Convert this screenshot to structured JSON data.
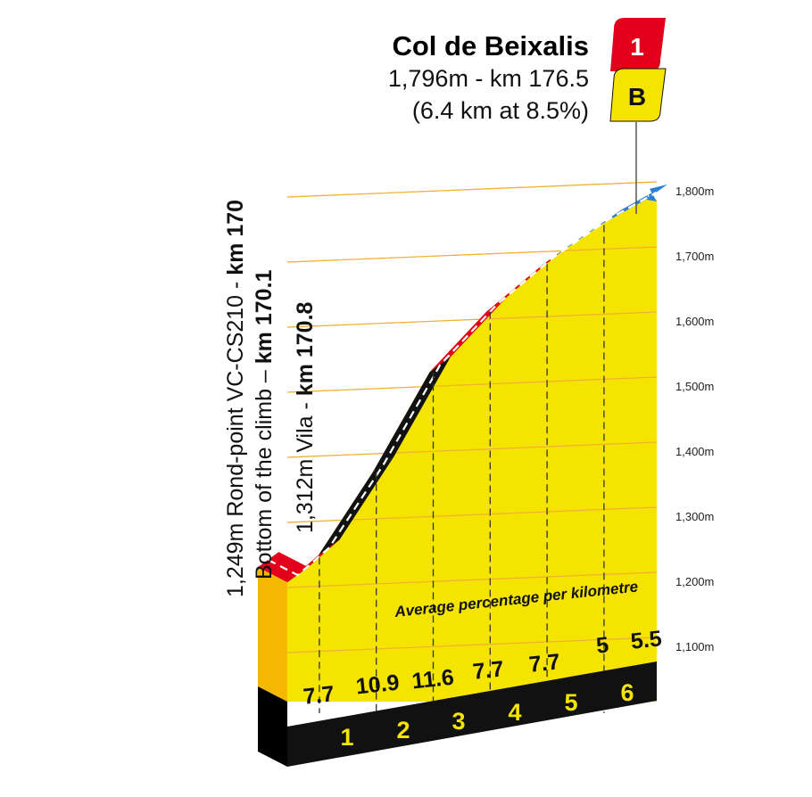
{
  "summit": {
    "name": "Col de Beixalis",
    "altitude_km": "1,796m - km 176.5",
    "climb_stats": "(6.4 km at 8.5%)",
    "category_badge": "1",
    "bonus_badge": "B"
  },
  "waypoints": [
    {
      "text": "1,249m Rond-point VC-CS210 - ",
      "km_text": "km 170"
    },
    {
      "text": "Bottom of the climb – ",
      "km_text": "km 170.1"
    },
    {
      "text": "1,312m Vila - ",
      "km_text": "km 170.8"
    }
  ],
  "annotation": "Average percentage per kilometre",
  "colors": {
    "profile_face": "#f5e400",
    "profile_side": "#f5b800",
    "base": "#111111",
    "category_badge": "#e2001a",
    "bonus_badge": "#f5e400",
    "gradient_bands": {
      "under6": "#2a7fd4",
      "6to9": "#e2001a",
      "9to12": "#111111"
    }
  },
  "chart_data": {
    "type": "area",
    "title": "Col de Beixalis",
    "y_ticks": [
      "1,100m",
      "1,200m",
      "1,300m",
      "1,400m",
      "1,500m",
      "1,600m",
      "1,700m",
      "1,800m"
    ],
    "y_values": [
      1100,
      1200,
      1300,
      1400,
      1500,
      1600,
      1700,
      1800
    ],
    "ylim": [
      1100,
      1800
    ],
    "km_labels": [
      "1",
      "2",
      "3",
      "4",
      "5",
      "6"
    ],
    "segments": [
      {
        "gradient": "7.7",
        "band": "6to9"
      },
      {
        "gradient": "10.9",
        "band": "9to12"
      },
      {
        "gradient": "11.6",
        "band": "9to12"
      },
      {
        "gradient": "7.7",
        "band": "6to9"
      },
      {
        "gradient": "7.7",
        "band": "6to9"
      },
      {
        "gradient": "5",
        "band": "under6"
      },
      {
        "gradient": "5.5",
        "band": "under6"
      }
    ],
    "profile": [
      {
        "km": 0.0,
        "alt": 1208
      },
      {
        "km": 0.55,
        "alt": 1250
      },
      {
        "km": 1.5,
        "alt": 1377
      },
      {
        "km": 2.5,
        "alt": 1531
      },
      {
        "km": 3.5,
        "alt": 1624
      },
      {
        "km": 4.5,
        "alt": 1697
      },
      {
        "km": 5.5,
        "alt": 1757
      },
      {
        "km": 6.3,
        "alt": 1796
      }
    ]
  }
}
